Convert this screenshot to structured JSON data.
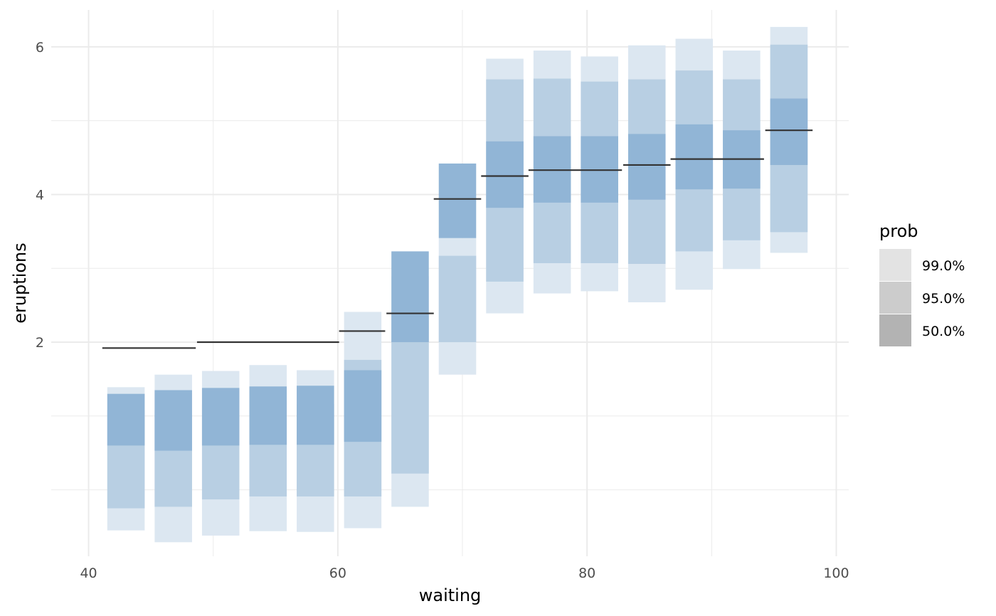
{
  "chart_data": {
    "type": "interval",
    "xlabel": "waiting",
    "ylabel": "eruptions",
    "xlim": [
      37,
      101
    ],
    "ylim": [
      -0.9,
      6.5
    ],
    "x_ticks": [
      40,
      60,
      80,
      100
    ],
    "y_ticks": [
      2,
      4,
      6
    ],
    "grid": true,
    "legend": {
      "title": "prob",
      "placement": "right",
      "items": [
        {
          "label": "99.0%",
          "key": "p99",
          "swatch": "#e3e3e3"
        },
        {
          "label": "95.0%",
          "key": "p95",
          "swatch": "#cccccc"
        },
        {
          "label": "50.0%",
          "key": "p50",
          "swatch": "#b3b3b3"
        }
      ]
    },
    "colors": {
      "p99": "#dce7f1",
      "p95": "#b8cfe3",
      "p50": "#91b5d6",
      "median": "#333333",
      "grid": "#ebebeb"
    },
    "bins": [
      {
        "x": 43.0,
        "p99": [
          -0.55,
          1.39
        ],
        "p95": [
          -0.25,
          1.08
        ],
        "p50": [
          0.6,
          1.3
        ],
        "median": 1.92,
        "median_span": [
          41.1,
          48.6
        ]
      },
      {
        "x": 46.8,
        "p99": [
          -0.71,
          1.56
        ],
        "p95": [
          -0.23,
          1.08
        ],
        "p50": [
          0.53,
          1.35
        ],
        "median": 1.92,
        "median_span": [
          41.1,
          48.6
        ]
      },
      {
        "x": 50.6,
        "p99": [
          -0.62,
          1.61
        ],
        "p95": [
          -0.13,
          1.16
        ],
        "p50": [
          0.6,
          1.38
        ],
        "median": 2.0,
        "median_span": [
          48.7,
          60.1
        ]
      },
      {
        "x": 54.4,
        "p99": [
          -0.56,
          1.69
        ],
        "p95": [
          -0.09,
          1.2
        ],
        "p50": [
          0.61,
          1.4
        ],
        "median": 2.0,
        "median_span": [
          48.7,
          60.1
        ]
      },
      {
        "x": 58.2,
        "p99": [
          -0.57,
          1.62
        ],
        "p95": [
          -0.09,
          1.16
        ],
        "p50": [
          0.61,
          1.41
        ],
        "median": 2.0,
        "median_span": [
          48.7,
          60.1
        ]
      },
      {
        "x": 62.0,
        "p99": [
          -0.52,
          2.41
        ],
        "p95": [
          -0.09,
          1.76
        ],
        "p50": [
          0.65,
          1.62
        ],
        "median": 2.15,
        "median_span": [
          60.1,
          63.8
        ]
      },
      {
        "x": 65.8,
        "p99": [
          -0.23,
          2.89
        ],
        "p95": [
          0.22,
          2.41
        ],
        "p50": [
          2.0,
          3.23
        ],
        "median": 2.39,
        "median_span": [
          63.9,
          67.7
        ]
      },
      {
        "x": 69.6,
        "p99": [
          1.56,
          3.41
        ],
        "p95": [
          2.0,
          3.17
        ],
        "p50": [
          3.41,
          4.42
        ],
        "median": 3.94,
        "median_span": [
          67.7,
          71.5
        ]
      },
      {
        "x": 73.4,
        "p99": [
          2.39,
          5.84
        ],
        "p95": [
          2.82,
          5.56
        ],
        "p50": [
          3.82,
          4.72
        ],
        "median": 4.25,
        "median_span": [
          71.5,
          75.3
        ]
      },
      {
        "x": 77.2,
        "p99": [
          2.66,
          5.95
        ],
        "p95": [
          3.07,
          5.57
        ],
        "p50": [
          3.89,
          4.79
        ],
        "median": 4.33,
        "median_span": [
          75.3,
          82.8
        ]
      },
      {
        "x": 81.0,
        "p99": [
          2.69,
          5.87
        ],
        "p95": [
          3.07,
          5.53
        ],
        "p50": [
          3.89,
          4.79
        ],
        "median": 4.33,
        "median_span": [
          75.3,
          82.8
        ]
      },
      {
        "x": 84.8,
        "p99": [
          2.54,
          6.02
        ],
        "p95": [
          3.06,
          5.56
        ],
        "p50": [
          3.93,
          4.82
        ],
        "median": 4.4,
        "median_span": [
          82.9,
          86.7
        ]
      },
      {
        "x": 88.6,
        "p99": [
          2.71,
          6.11
        ],
        "p95": [
          3.23,
          5.68
        ],
        "p50": [
          4.07,
          4.95
        ],
        "median": 4.48,
        "median_span": [
          86.7,
          94.2
        ]
      },
      {
        "x": 92.4,
        "p99": [
          2.99,
          5.95
        ],
        "p95": [
          3.38,
          5.56
        ],
        "p50": [
          4.08,
          4.87
        ],
        "median": 4.48,
        "median_span": [
          86.7,
          94.2
        ]
      },
      {
        "x": 96.2,
        "p99": [
          3.21,
          6.27
        ],
        "p95": [
          3.49,
          6.03
        ],
        "p50": [
          4.4,
          5.3
        ],
        "median": 4.87,
        "median_span": [
          94.3,
          98.1
        ]
      }
    ]
  }
}
